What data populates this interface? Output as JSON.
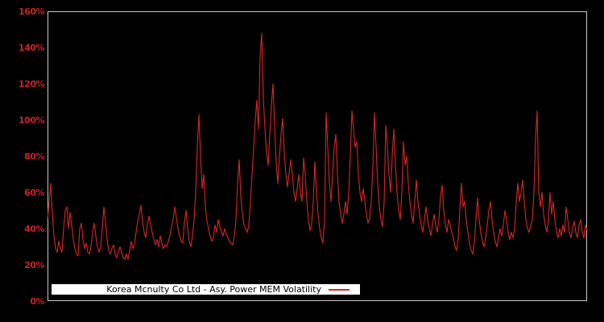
{
  "legend": {
    "label": "Korea Mcnulty Co Ltd - Asy. Power MEM Volatility"
  },
  "colors": {
    "background": "#000000",
    "line": "#d92626",
    "tick_label": "#cc2222",
    "plot_border": "#c8c8c8",
    "legend_background": "#ffffff",
    "legend_text": "#000000"
  },
  "chart_data": {
    "type": "line",
    "title": "",
    "xlabel": "",
    "ylabel": "",
    "grid": false,
    "legend_position": "bottom-left-inside",
    "ylim": [
      0,
      160
    ],
    "y_unit": "%",
    "y_ticks": [
      0,
      20,
      40,
      60,
      80,
      100,
      120,
      140,
      160
    ],
    "y_tick_labels": [
      "0%",
      "20%",
      "40%",
      "60%",
      "80%",
      "100%",
      "120%",
      "140%",
      "160%"
    ],
    "series": [
      {
        "name": "Korea Mcnulty Co Ltd - Asy. Power MEM Volatility",
        "color": "#d92626",
        "values": [
          45,
          55,
          65,
          48,
          36,
          29,
          27,
          33,
          29,
          27,
          40,
          50,
          52,
          40,
          49,
          42,
          34,
          29,
          26,
          25,
          40,
          43,
          34,
          29,
          32,
          27,
          26,
          30,
          38,
          43,
          36,
          30,
          27,
          30,
          40,
          52,
          44,
          34,
          28,
          26,
          29,
          31,
          26,
          24,
          27,
          30,
          27,
          24,
          23,
          26,
          23,
          28,
          33,
          29,
          32,
          38,
          44,
          48,
          53,
          44,
          38,
          35,
          42,
          47,
          42,
          38,
          34,
          31,
          34,
          30,
          36,
          32,
          29,
          31,
          30,
          33,
          36,
          41,
          45,
          52,
          46,
          40,
          36,
          33,
          32,
          44,
          50,
          40,
          33,
          30,
          36,
          45,
          60,
          85,
          103,
          80,
          62,
          70,
          52,
          44,
          40,
          36,
          33,
          35,
          42,
          38,
          45,
          41,
          38,
          36,
          40,
          37,
          35,
          33,
          32,
          31,
          36,
          45,
          65,
          78,
          58,
          48,
          42,
          40,
          38,
          42,
          55,
          70,
          85,
          100,
          111,
          95,
          135,
          148,
          112,
          95,
          82,
          75,
          92,
          108,
          120,
          96,
          76,
          65,
          80,
          92,
          101,
          82,
          70,
          63,
          70,
          78,
          70,
          60,
          55,
          62,
          70,
          60,
          55,
          79,
          70,
          55,
          45,
          39,
          43,
          55,
          77,
          60,
          48,
          40,
          35,
          32,
          45,
          104,
          85,
          65,
          55,
          70,
          85,
          92,
          70,
          55,
          48,
          43,
          48,
          55,
          48,
          60,
          80,
          105,
          95,
          85,
          88,
          70,
          60,
          55,
          62,
          55,
          48,
          43,
          46,
          55,
          75,
          104,
          85,
          65,
          52,
          45,
          41,
          55,
          97,
          85,
          70,
          60,
          80,
          95,
          75,
          60,
          50,
          45,
          60,
          88,
          75,
          80,
          65,
          55,
          48,
          43,
          55,
          67,
          55,
          48,
          42,
          38,
          45,
          52,
          45,
          40,
          36,
          42,
          48,
          42,
          38,
          45,
          58,
          64,
          50,
          42,
          38,
          45,
          42,
          38,
          35,
          30,
          28,
          35,
          50,
          65,
          52,
          55,
          45,
          38,
          32,
          28,
          26,
          32,
          45,
          57,
          45,
          38,
          33,
          30,
          35,
          42,
          50,
          55,
          45,
          38,
          33,
          30,
          35,
          40,
          36,
          42,
          50,
          45,
          38,
          34,
          38,
          35,
          40,
          55,
          65,
          55,
          60,
          67,
          55,
          45,
          40,
          38,
          42,
          45,
          60,
          90,
          105,
          60,
          52,
          60,
          48,
          42,
          38,
          45,
          60,
          48,
          55,
          45,
          38,
          35,
          40,
          36,
          42,
          38,
          52,
          45,
          38,
          35,
          40,
          44,
          38,
          35,
          42,
          45,
          38,
          35,
          42,
          39
        ]
      }
    ]
  }
}
